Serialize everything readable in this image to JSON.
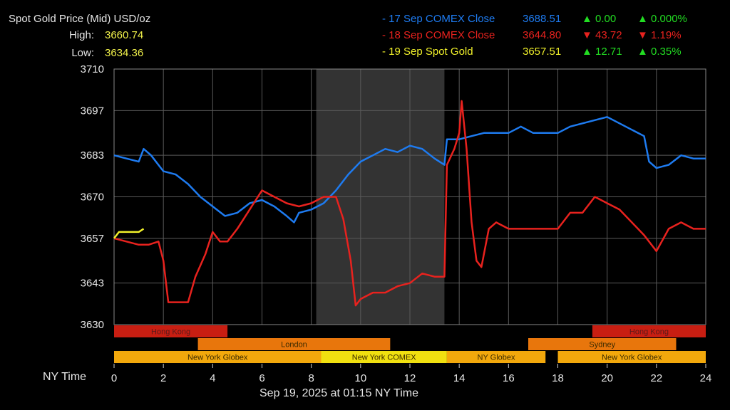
{
  "header": {
    "title": "Spot Gold Price (Mid) USD/oz",
    "high_label": "High:",
    "high_value": "3660.74",
    "low_label": "Low:",
    "low_value": "3634.36"
  },
  "legend": [
    {
      "name": "- 17 Sep COMEX Close",
      "value": "3688.51",
      "change": "▲ 0.00",
      "pct": "▲ 0.000%",
      "color": "#1e7bf0",
      "change_color": "#22dd22"
    },
    {
      "name": "- 18 Sep COMEX Close",
      "value": "3644.80",
      "change": "▼ 43.72",
      "pct": "▼ 1.19%",
      "color": "#e8221e",
      "change_color": "#e8221e"
    },
    {
      "name": "- 19 Sep Spot Gold",
      "value": "3657.51",
      "change": "▲ 12.71",
      "pct": "▲ 0.35%",
      "color": "#f0f02a",
      "change_color": "#22dd22"
    }
  ],
  "footer": {
    "x_axis_label": "NY Time",
    "timestamp": "Sep 19, 2025 at 01:15 NY Time"
  },
  "chart_data": {
    "type": "line",
    "title": "Spot Gold Price (Mid) USD/oz",
    "xlabel": "NY Time",
    "xlim": [
      0,
      24
    ],
    "ylim": [
      3630,
      3710
    ],
    "x_ticks": [
      0,
      2,
      4,
      6,
      8,
      10,
      12,
      14,
      16,
      18,
      20,
      22,
      24
    ],
    "y_ticks": [
      3630,
      3643,
      3657,
      3670,
      3683,
      3697,
      3710
    ],
    "grid": true,
    "shaded_range": [
      8.2,
      13.4
    ],
    "series": [
      {
        "name": "17 Sep COMEX Close",
        "color": "#1e7bf0",
        "x": [
          0,
          0.5,
          1,
          1.2,
          1.5,
          2,
          2.5,
          3,
          3.5,
          4,
          4.5,
          5,
          5.5,
          6,
          6.5,
          7,
          7.3,
          7.5,
          8,
          8.5,
          9,
          9.5,
          10,
          10.5,
          11,
          11.5,
          12,
          12.5,
          13,
          13.4,
          13.5,
          14,
          14.5,
          15,
          15.5,
          16,
          16.5,
          17,
          17.5,
          18,
          18.5,
          19,
          19.5,
          20,
          20.5,
          21,
          21.5,
          21.7,
          22,
          22.5,
          23,
          23.5,
          24
        ],
        "values": [
          3683,
          3682,
          3681,
          3685,
          3683,
          3678,
          3677,
          3674,
          3670,
          3667,
          3664,
          3665,
          3668,
          3669,
          3667,
          3664,
          3662,
          3665,
          3666,
          3668,
          3672,
          3677,
          3681,
          3683,
          3685,
          3684,
          3686,
          3685,
          3682,
          3680,
          3688,
          3688,
          3689,
          3690,
          3690,
          3690,
          3692,
          3690,
          3690,
          3690,
          3692,
          3693,
          3694,
          3695,
          3693,
          3691,
          3689,
          3681,
          3679,
          3680,
          3683,
          3682,
          3682
        ]
      },
      {
        "name": "18 Sep COMEX Close",
        "color": "#e8221e",
        "x": [
          0,
          0.5,
          1,
          1.4,
          1.8,
          2,
          2.2,
          2.6,
          3,
          3.3,
          3.7,
          4,
          4.3,
          4.6,
          5,
          5.5,
          6,
          6.5,
          7,
          7.5,
          8,
          8.5,
          9,
          9.3,
          9.6,
          9.8,
          10,
          10.5,
          11,
          11.5,
          12,
          12.5,
          13,
          13.4,
          13.5,
          13.8,
          14,
          14.1,
          14.3,
          14.5,
          14.7,
          14.9,
          15.2,
          15.5,
          16,
          16.5,
          17,
          17.5,
          18,
          18.5,
          19,
          19.5,
          20,
          20.5,
          21,
          21.5,
          22,
          22.5,
          23,
          23.5,
          24
        ],
        "values": [
          3657,
          3656,
          3655,
          3655,
          3656,
          3650,
          3637,
          3637,
          3637,
          3645,
          3652,
          3659,
          3656,
          3656,
          3660,
          3666,
          3672,
          3670,
          3668,
          3667,
          3668,
          3670,
          3670,
          3663,
          3650,
          3636,
          3638,
          3640,
          3640,
          3642,
          3643,
          3646,
          3645,
          3645,
          3680,
          3685,
          3690,
          3700,
          3685,
          3662,
          3650,
          3648,
          3660,
          3662,
          3660,
          3660,
          3660,
          3660,
          3660,
          3665,
          3665,
          3670,
          3668,
          3666,
          3662,
          3658,
          3653,
          3660,
          3662,
          3660,
          3660
        ]
      },
      {
        "name": "19 Sep Spot Gold",
        "color": "#f0f02a",
        "x": [
          0,
          0.2,
          0.5,
          1,
          1.2
        ],
        "values": [
          3657,
          3659,
          3659,
          3659,
          3660
        ]
      }
    ]
  },
  "sessions": [
    {
      "label": "Hong Kong",
      "start": 0,
      "end": 4.6,
      "color": "#c81e12",
      "row": 0
    },
    {
      "label": "Hong Kong",
      "start": 19.4,
      "end": 24,
      "color": "#c81e12",
      "row": 0
    },
    {
      "label": "London",
      "start": 3.4,
      "end": 11.2,
      "color": "#e8760c",
      "row": 1
    },
    {
      "label": "Sydney",
      "start": 16.8,
      "end": 22.8,
      "color": "#e8760c",
      "row": 1
    },
    {
      "label": "New York Globex",
      "start": 0,
      "end": 8.4,
      "color": "#f2a80c",
      "row": 2
    },
    {
      "label": "New York COMEX",
      "start": 8.4,
      "end": 13.5,
      "color": "#f0e010",
      "row": 2
    },
    {
      "label": "NY Globex",
      "start": 13.5,
      "end": 17.5,
      "color": "#f2a80c",
      "row": 2
    },
    {
      "label": "New York Globex",
      "start": 18,
      "end": 24,
      "color": "#f2a80c",
      "row": 2
    }
  ]
}
